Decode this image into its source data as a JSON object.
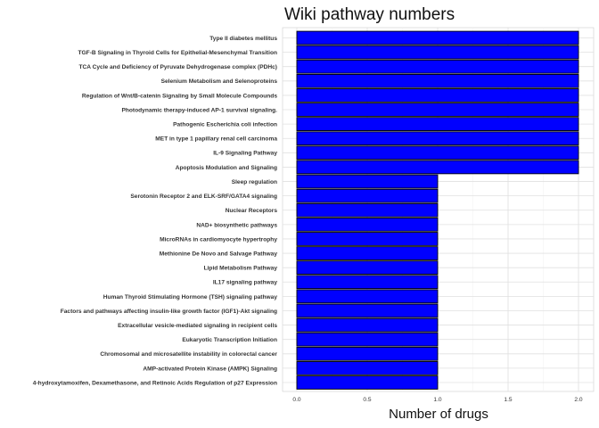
{
  "chart_data": {
    "type": "bar",
    "orientation": "horizontal",
    "title": "Wiki pathway numbers",
    "xlabel": "Number of drugs",
    "ylabel": "",
    "xlim": [
      0,
      2
    ],
    "xticks": [
      "0.0",
      "0.5",
      "1.0",
      "1.5",
      "2.0"
    ],
    "grid": true,
    "legend": "none",
    "bar_color": "#0000ff",
    "bar_edge_color": "#000000",
    "categories": [
      "Type II diabetes mellitus",
      "TGF-B Signaling in Thyroid Cells for Epithelial-Mesenchymal Transition",
      "TCA Cycle and Deficiency of Pyruvate Dehydrogenase complex (PDHc)",
      "Selenium Metabolism and Selenoproteins",
      "Regulation of Wnt/B-catenin Signaling by Small Molecule Compounds",
      "Photodynamic therapy-induced AP-1 survival signaling.",
      "Pathogenic Escherichia coli infection",
      "MET in type 1 papillary renal cell carcinoma",
      "IL-9 Signaling Pathway",
      "Apoptosis Modulation and Signaling",
      "Sleep regulation",
      "Serotonin Receptor 2 and ELK-SRF/GATA4 signaling",
      "Nuclear Receptors",
      "NAD+ biosynthetic pathways",
      "MicroRNAs in cardiomyocyte hypertrophy",
      "Methionine De Novo and Salvage Pathway",
      "Lipid Metabolism Pathway",
      "IL17 signaling pathway",
      "Human Thyroid Stimulating Hormone (TSH) signaling pathway",
      "Factors and pathways affecting insulin-like growth factor (IGF1)-Akt signaling",
      "Extracellular vesicle-mediated signaling in recipient cells",
      "Eukaryotic Transcription Initiation",
      "Chromosomal and microsatellite instability in colorectal cancer",
      "AMP-activated Protein Kinase (AMPK) Signaling",
      "4-hydroxytamoxifen, Dexamethasone, and Retinoic Acids Regulation of p27 Expression"
    ],
    "values": [
      2,
      2,
      2,
      2,
      2,
      2,
      2,
      2,
      2,
      2,
      1,
      1,
      1,
      1,
      1,
      1,
      1,
      1,
      1,
      1,
      1,
      1,
      1,
      1,
      1
    ]
  }
}
